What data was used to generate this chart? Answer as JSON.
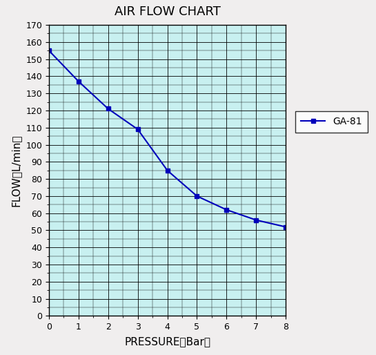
{
  "title": "AIR FLOW CHART",
  "xlabel": "PRESSURE（Bar）",
  "ylabel": "FLOW（L/min）",
  "pressure": [
    0,
    1,
    2,
    3,
    4,
    5,
    6,
    7,
    8
  ],
  "flow": [
    155,
    137,
    121,
    109,
    85,
    70,
    62,
    56,
    52
  ],
  "line_color": "#0000bb",
  "marker": "s",
  "marker_size": 5,
  "legend_label": "GA-81",
  "xlim": [
    0,
    8
  ],
  "ylim": [
    0,
    170
  ],
  "xticks": [
    0,
    1,
    2,
    3,
    4,
    5,
    6,
    7,
    8
  ],
  "yticks": [
    0,
    10,
    20,
    30,
    40,
    50,
    60,
    70,
    80,
    90,
    100,
    110,
    120,
    130,
    140,
    150,
    160,
    170
  ],
  "bg_color": "#c8f0f0",
  "title_fontsize": 13,
  "axis_label_fontsize": 11,
  "tick_fontsize": 9,
  "legend_fontsize": 10,
  "grid_color": "#000000",
  "grid_linewidth": 0.5,
  "fig_bg": "#f0eeee"
}
